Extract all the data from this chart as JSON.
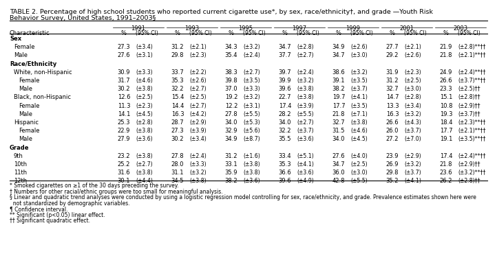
{
  "title_line1": "TABLE 2. Percentage of high school students who reported current cigarette use*, by sex, race/ethnicity†, and grade —Youth Risk",
  "title_line2": "Behavior Survey, United States, 1991–2003§",
  "years": [
    "1991",
    "1993",
    "1995",
    "1997",
    "1999",
    "2001",
    "2003"
  ],
  "rows": [
    {
      "label": "Sex",
      "indent": 0,
      "header": true,
      "data": null
    },
    {
      "label": "Female",
      "indent": 1,
      "header": false,
      "data": [
        "27.3",
        "(±3.4)",
        "31.2",
        "(±2.1)",
        "34.3",
        "(±3.2)",
        "34.7",
        "(±2.8)",
        "34.9",
        "(±2.6)",
        "27.7",
        "(±2.1)",
        "21.9",
        "(±2.8)**††"
      ]
    },
    {
      "label": "Male",
      "indent": 1,
      "header": false,
      "data": [
        "27.6",
        "(±3.1)",
        "29.8",
        "(±2.3)",
        "35.4",
        "(±2.4)",
        "37.7",
        "(±2.7)",
        "34.7",
        "(±3.0)",
        "29.2",
        "(±2.6)",
        "21.8",
        "(±2.1)**††"
      ]
    },
    {
      "label": "Race/Ethnicity",
      "indent": 0,
      "header": true,
      "data": null
    },
    {
      "label": "White, non-Hispanic",
      "indent": 1,
      "header": false,
      "data": [
        "30.9",
        "(±3.3)",
        "33.7",
        "(±2.2)",
        "38.3",
        "(±2.7)",
        "39.7",
        "(±2.4)",
        "38.6",
        "(±3.2)",
        "31.9",
        "(±2.3)",
        "24.9",
        "(±2.4)**††"
      ]
    },
    {
      "label": "Female",
      "indent": 2,
      "header": false,
      "data": [
        "31.7",
        "(±4.6)",
        "35.3",
        "(±2.6)",
        "39.8",
        "(±3.5)",
        "39.9",
        "(±3.2)",
        "39.1",
        "(±3.5)",
        "31.2",
        "(±2.5)",
        "26.6",
        "(±3.7)**††"
      ]
    },
    {
      "label": "Male",
      "indent": 2,
      "header": false,
      "data": [
        "30.2",
        "(±3.8)",
        "32.2",
        "(±2.7)",
        "37.0",
        "(±3.3)",
        "39.6",
        "(±3.8)",
        "38.2",
        "(±3.7)",
        "32.7",
        "(±3.0)",
        "23.3",
        "(±2.5)††"
      ]
    },
    {
      "label": "Black, non-Hispanic",
      "indent": 1,
      "header": false,
      "data": [
        "12.6",
        "(±2.5)",
        "15.4",
        "(±2.5)",
        "19.2",
        "(±3.2)",
        "22.7",
        "(±3.8)",
        "19.7",
        "(±4.1)",
        "14.7",
        "(±2.8)",
        "15.1",
        "(±2.8)††"
      ]
    },
    {
      "label": "Female",
      "indent": 2,
      "header": false,
      "data": [
        "11.3",
        "(±2.3)",
        "14.4",
        "(±2.7)",
        "12.2",
        "(±3.1)",
        "17.4",
        "(±3.9)",
        "17.7",
        "(±3.5)",
        "13.3",
        "(±3.4)",
        "10.8",
        "(±2.9)††"
      ]
    },
    {
      "label": "Male",
      "indent": 2,
      "header": false,
      "data": [
        "14.1",
        "(±4.5)",
        "16.3",
        "(±4.2)",
        "27.8",
        "(±5.5)",
        "28.2",
        "(±5.5)",
        "21.8",
        "(±7.1)",
        "16.3",
        "(±3.2)",
        "19.3",
        "(±3.7)††"
      ]
    },
    {
      "label": "Hispanic",
      "indent": 1,
      "header": false,
      "data": [
        "25.3",
        "(±2.8)",
        "28.7",
        "(±2.9)",
        "34.0",
        "(±5.3)",
        "34.0",
        "(±2.7)",
        "32.7",
        "(±3.8)",
        "26.6",
        "(±4.3)",
        "18.4",
        "(±2.3)**††"
      ]
    },
    {
      "label": "Female",
      "indent": 2,
      "header": false,
      "data": [
        "22.9",
        "(±3.8)",
        "27.3",
        "(±3.9)",
        "32.9",
        "(±5.6)",
        "32.2",
        "(±3.7)",
        "31.5",
        "(±4.6)",
        "26.0",
        "(±3.7)",
        "17.7",
        "(±2.1)**††"
      ]
    },
    {
      "label": "Male",
      "indent": 2,
      "header": false,
      "data": [
        "27.9",
        "(±3.6)",
        "30.2",
        "(±3.4)",
        "34.9",
        "(±8.7)",
        "35.5",
        "(±3.6)",
        "34.0",
        "(±4.5)",
        "27.2",
        "(±7.0)",
        "19.1",
        "(±3.5)**††"
      ]
    },
    {
      "label": "Grade",
      "indent": 0,
      "header": true,
      "data": null
    },
    {
      "label": "9th",
      "indent": 1,
      "header": false,
      "data": [
        "23.2",
        "(±3.8)",
        "27.8",
        "(±2.4)",
        "31.2",
        "(±1.6)",
        "33.4",
        "(±5.1)",
        "27.6",
        "(±4.0)",
        "23.9",
        "(±2.9)",
        "17.4",
        "(±2.4)**††"
      ]
    },
    {
      "label": "10th",
      "indent": 1,
      "header": false,
      "data": [
        "25.2",
        "(±2.7)",
        "28.0",
        "(±3.3)",
        "33.1",
        "(±3.8)",
        "35.3",
        "(±4.1)",
        "34.7",
        "(±2.5)",
        "26.9",
        "(±3.2)",
        "21.8",
        "(±2.9)††"
      ]
    },
    {
      "label": "11th",
      "indent": 1,
      "header": false,
      "data": [
        "31.6",
        "(±3.8)",
        "31.1",
        "(±3.2)",
        "35.9",
        "(±3.8)",
        "36.6",
        "(±3.6)",
        "36.0",
        "(±3.0)",
        "29.8",
        "(±3.7)",
        "23.6",
        "(±3.2)**††"
      ]
    },
    {
      "label": "12th",
      "indent": 1,
      "header": false,
      "data": [
        "30.1",
        "(±4.4)",
        "34.5",
        "(±3.8)",
        "38.2",
        "(±3.6)",
        "39.6",
        "(±4.9)",
        "42.8",
        "(±5.5)",
        "35.2",
        "(±4.1)",
        "26.2",
        "(±2.8)††"
      ]
    }
  ],
  "footnotes": [
    "* Smoked cigarettes on ≥1 of the 30 days preceding the survey.",
    "† Numbers for other racial/ethnic groups were too small for meaningful analysis.",
    "§ Linear and quadratic trend analyses were conducted by using a logistic regression model controlling for sex, race/ethnicity, and grade. Prevalence estimates shown here were",
    "  not standardized by demographic variables.",
    "¶ Confidence interval.",
    "** Significant (p<0.05) linear effect.",
    "†† Significant quadratic effect."
  ],
  "bg_color": "#ffffff",
  "text_color": "#000000",
  "font_size": 6.0,
  "title_font_size": 6.8,
  "footnote_font_size": 5.5
}
